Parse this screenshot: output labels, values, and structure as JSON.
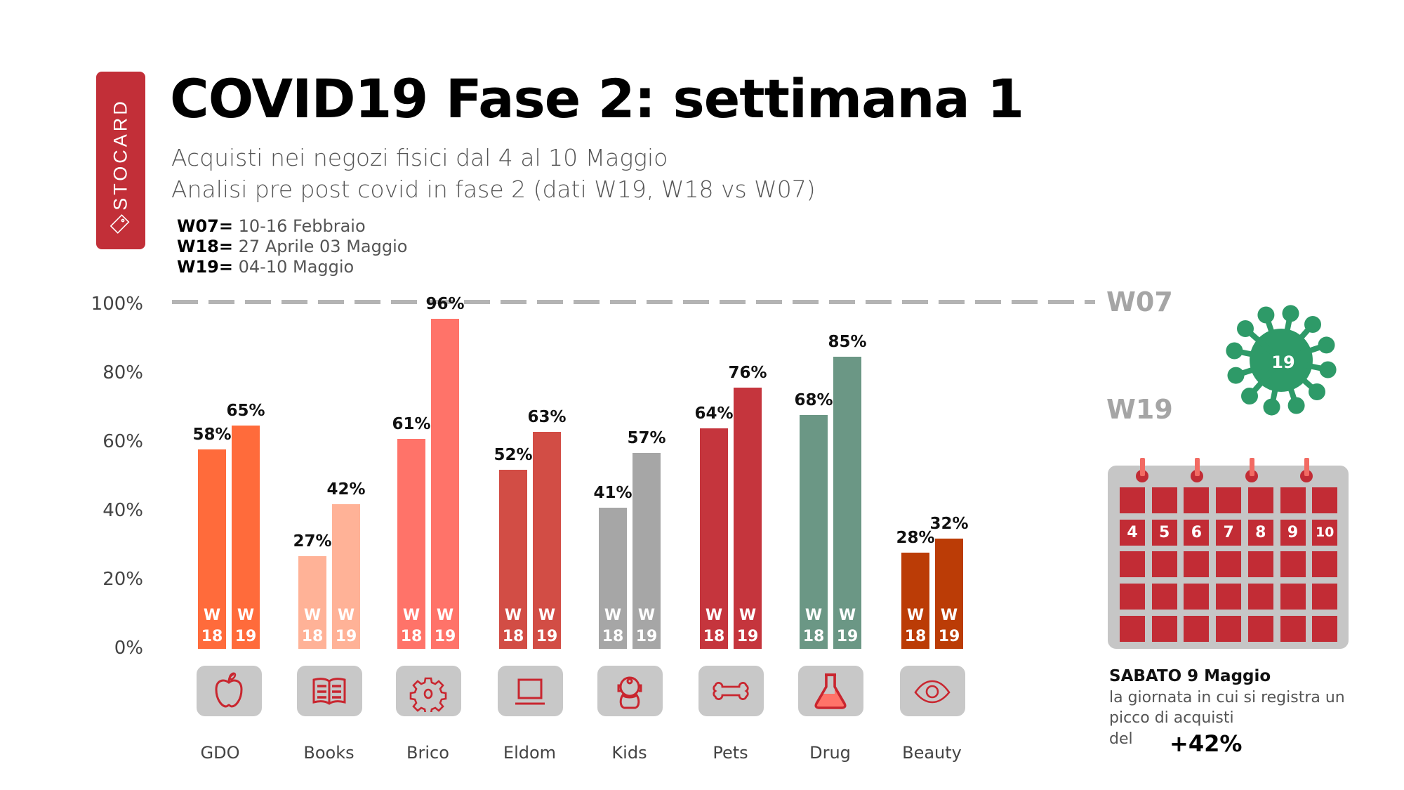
{
  "logo": {
    "brand": "STOCARD",
    "color": "#c22f38"
  },
  "header": {
    "title": "COVID19 Fase 2: settimana 1",
    "subtitle_1": "Acquisti nei negozi fisici dal 4 al 10 Maggio",
    "subtitle_2": "Analisi pre post covid in fase 2 (dati W19, W18 vs W07)"
  },
  "legend": [
    {
      "key": "W07=",
      "text": " 10-16 Febbraio"
    },
    {
      "key": "W18=",
      "text": " 27 Aprile 03 Maggio"
    },
    {
      "key": "W19=",
      "text": " 04-10 Maggio"
    }
  ],
  "chart_data": {
    "type": "bar",
    "title": "COVID19 Fase 2: settimana 1",
    "xlabel": "",
    "ylabel": "",
    "ylim": [
      0,
      100
    ],
    "yticks": [
      "0%",
      "20%",
      "40%",
      "60%",
      "80%",
      "100%"
    ],
    "ytick_values": [
      0,
      20,
      40,
      60,
      80,
      100
    ],
    "reference_line": {
      "label": "W07",
      "value": 100,
      "style": "dashed"
    },
    "categories": [
      "GDO",
      "Books",
      "Brico",
      "Eldom",
      "Kids",
      "Pets",
      "Drug",
      "Beauty"
    ],
    "series": [
      {
        "name": "W18",
        "tag_top": "W",
        "tag_bottom": "18",
        "values": [
          58,
          27,
          61,
          52,
          41,
          64,
          68,
          28
        ]
      },
      {
        "name": "W19",
        "tag_top": "W",
        "tag_bottom": "19",
        "values": [
          65,
          42,
          96,
          63,
          57,
          76,
          85,
          32
        ]
      }
    ],
    "value_labels": {
      "W18": [
        "58%",
        "27%",
        "61%",
        "52%",
        "41%",
        "64%",
        "68%",
        "28%"
      ],
      "W19": [
        "65%",
        "42%",
        "96%",
        "63%",
        "57%",
        "76%",
        "85%",
        "32%"
      ]
    },
    "category_colors": [
      "#ff6b3b",
      "#ffb297",
      "#ff7369",
      "#d24d45",
      "#a6a6a6",
      "#c5353d",
      "#6b9785",
      "#bb3c06"
    ],
    "category_icons": [
      "apple-icon",
      "book-icon",
      "gear-icon",
      "laptop-icon",
      "baby-icon",
      "bone-icon",
      "flask-icon",
      "eye-icon"
    ],
    "grid": false
  },
  "side": {
    "w07_label": "W07",
    "w19_label": "W19",
    "virus_label": "19",
    "virus_color": "#2e9a68",
    "calendar_days": [
      "4",
      "5",
      "6",
      "7",
      "8",
      "9",
      "10"
    ],
    "note_title": "SABATO 9 Maggio",
    "note_line_1": "la giornata in cui si registra un",
    "note_line_2": "picco di acquisti",
    "note_line_3": "del",
    "note_value": "+42%"
  }
}
